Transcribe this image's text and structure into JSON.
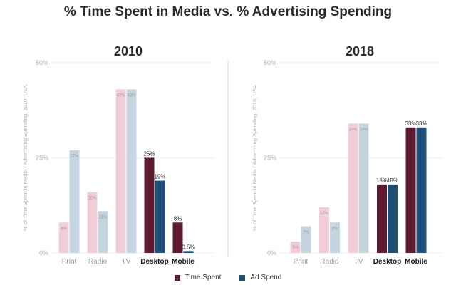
{
  "page": {
    "title": "% Time Spent in Media vs. % Advertising Spending"
  },
  "legend": {
    "items": [
      {
        "label": "Time Spent",
        "color": "#5e1a2e"
      },
      {
        "label": "Ad Spend",
        "color": "#1c4e78"
      }
    ]
  },
  "colors": {
    "time_light": "#f1cdd8",
    "ad_light": "#c5d5df",
    "time_dark": "#5e1a2e",
    "ad_dark": "#1c4e78",
    "label_light": "#9c9c9c",
    "label_dark": "#1a1a1a",
    "category_light": "#9a9a9a",
    "category_dark": "#1a1a1a",
    "axis_text": "#b0b0b0",
    "gridline": "#eeeeee",
    "divider": "#dddddd"
  },
  "chart_data": [
    {
      "type": "bar",
      "title": "2010",
      "ylabel": "% of Time Spent in Media / Advertising Spending, 2010, USA",
      "ylim": [
        0,
        50
      ],
      "yticks": [
        {
          "value": 0,
          "label": "0%"
        },
        {
          "value": 25,
          "label": "25%"
        },
        {
          "value": 50,
          "label": "50%"
        }
      ],
      "categories": [
        "Print",
        "Radio",
        "TV",
        "Desktop",
        "Mobile"
      ],
      "highlight": [
        false,
        false,
        false,
        true,
        true
      ],
      "series": [
        {
          "name": "Time Spent",
          "values": [
            8,
            16,
            43,
            25,
            8
          ],
          "labels": [
            "8%",
            "16%",
            "43%",
            "25%",
            "8%"
          ]
        },
        {
          "name": "Ad Spend",
          "values": [
            27,
            11,
            43,
            19,
            0.5
          ],
          "labels": [
            "27%",
            "11%",
            "43%",
            "19%",
            "0.5%"
          ]
        }
      ]
    },
    {
      "type": "bar",
      "title": "2018",
      "ylabel": "% of Time Spent in Media / Advertising Spending, 2018, USA",
      "ylim": [
        0,
        50
      ],
      "yticks": [
        {
          "value": 0,
          "label": "0%"
        },
        {
          "value": 25,
          "label": "25%"
        },
        {
          "value": 50,
          "label": "50%"
        }
      ],
      "categories": [
        "Print",
        "Radio",
        "TV",
        "Desktop",
        "Mobile"
      ],
      "highlight": [
        false,
        false,
        false,
        true,
        true
      ],
      "series": [
        {
          "name": "Time Spent",
          "values": [
            3,
            12,
            34,
            18,
            33
          ],
          "labels": [
            "3%",
            "12%",
            "34%",
            "18%",
            "33%"
          ]
        },
        {
          "name": "Ad Spend",
          "values": [
            7,
            8,
            34,
            18,
            33
          ],
          "labels": [
            "7%",
            "8%",
            "34%",
            "18%",
            "33%"
          ]
        }
      ]
    }
  ]
}
